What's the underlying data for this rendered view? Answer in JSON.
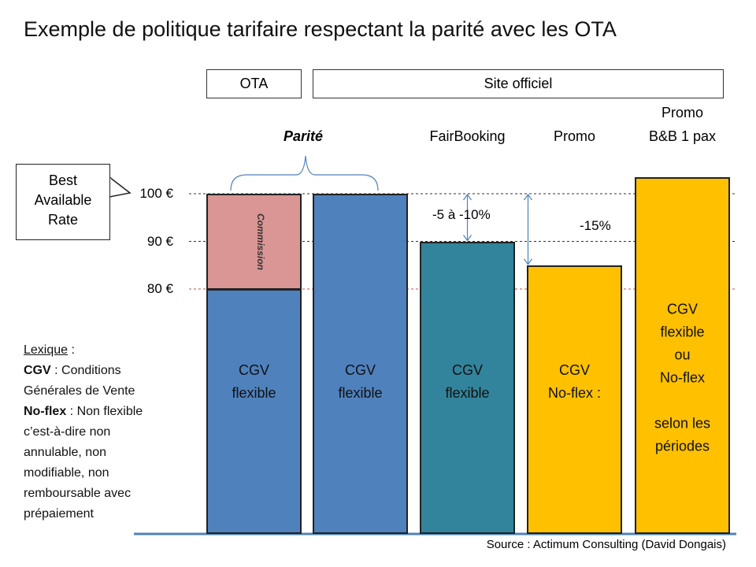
{
  "title": "Exemple de politique tarifaire respectant la parité avec les OTA",
  "headers": [
    "OTA",
    "Site officiel"
  ],
  "callout": "Best\nAvailable\nRate",
  "chart_data": {
    "type": "bar",
    "ylim": [
      28.6,
      100
    ],
    "yticks": [
      {
        "value": 100,
        "label": "100 €"
      },
      {
        "value": 90,
        "label": "90 €"
      },
      {
        "value": 80,
        "label": "80 €"
      }
    ],
    "categories": [
      null,
      null,
      "FairBooking",
      "Promo",
      "Promo\nB&B 1 pax"
    ],
    "group_label": "Parité",
    "bars": [
      {
        "label": "CGV\nflexible",
        "segments": [
          {
            "value": 80,
            "color": "#4f81bd"
          },
          {
            "value": 20,
            "color": "#d99694",
            "label": "Commission"
          }
        ]
      },
      {
        "label": "CGV\nflexible",
        "segments": [
          {
            "value": 100,
            "color": "#4f81bd"
          }
        ]
      },
      {
        "label": "CGV\nflexible",
        "diff": "-5 à -10%",
        "segments": [
          {
            "value": 90,
            "color": "#31849b"
          }
        ]
      },
      {
        "label": "CGV\nNo-flex :",
        "diff": "-15%",
        "segments": [
          {
            "value": 85,
            "color": "#ffc000"
          }
        ]
      },
      {
        "label": "CGV\nflexible\nou\nNo-flex\n\nselon les\npériodes",
        "segments": [
          {
            "value": 103.5,
            "color": "#ffc000"
          }
        ]
      }
    ]
  },
  "lexicon": {
    "title": "Lexique",
    "sep": " :",
    "items": [
      {
        "term": "CGV",
        "definition": " : Conditions Générales de Vente"
      },
      {
        "term": "No-flex",
        "definition": " : Non flexible c’est-à-dire non annulable, non modifiable, non remboursable avec prépaiement"
      }
    ]
  },
  "source": "Source : Actimum Consulting (David Dongais)"
}
